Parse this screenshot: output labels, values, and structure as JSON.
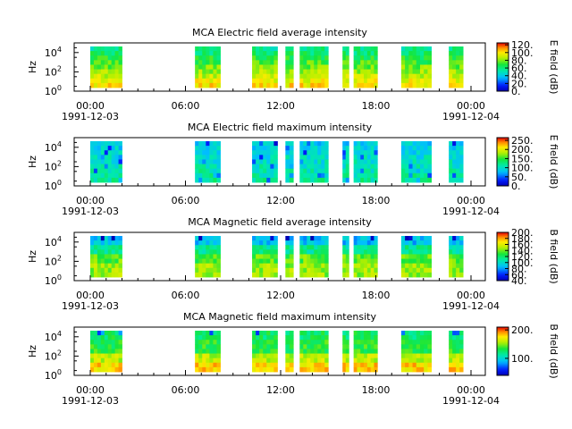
{
  "panels": [
    {
      "title": "MCA  Electric field average intensity",
      "ylabel": "Hz",
      "ytick_exponents": [
        "0",
        "2",
        "4"
      ],
      "colorbar_label": "E field (dB)",
      "colorbar_ticks": [
        "0.",
        "20.",
        "40.",
        "60.",
        "80.",
        "100.",
        "120."
      ],
      "colorbar_range": [
        0,
        125
      ],
      "palette": "avg-e"
    },
    {
      "title": "MCA  Electric field maximum intensity",
      "ylabel": "Hz",
      "ytick_exponents": [
        "0",
        "2",
        "4"
      ],
      "colorbar_label": "E field (dB)",
      "colorbar_ticks": [
        "0.",
        "50.",
        "100.",
        "150.",
        "200.",
        "250."
      ],
      "colorbar_range": [
        0,
        265
      ],
      "palette": "max-e"
    },
    {
      "title": "MCA  Magnetic field average intensity",
      "ylabel": "Hz",
      "ytick_exponents": [
        "0",
        "2",
        "4"
      ],
      "colorbar_label": "B field (dB)",
      "colorbar_ticks": [
        "40.",
        "60.",
        "80.",
        "100.",
        "120.",
        "140.",
        "160.",
        "180.",
        "200."
      ],
      "colorbar_range": [
        40,
        200
      ],
      "palette": "avg-b"
    },
    {
      "title": "MCA  Magnetic field maximum intensity",
      "ylabel": "Hz",
      "ytick_exponents": [
        "0",
        "2",
        "4"
      ],
      "colorbar_label": "B field (dB)",
      "colorbar_ticks": [
        "100.",
        "200."
      ],
      "colorbar_range": [
        40,
        210
      ],
      "palette": "max-b"
    }
  ],
  "x_axis": {
    "tick_labels": [
      "00:00",
      "06:00",
      "12:00",
      "18:00",
      "00:00"
    ],
    "start_date": "1991-12-03",
    "end_date": "1991-12-04"
  },
  "colors": {
    "background": "#ffffff",
    "axes": "#000000"
  },
  "chart_data": [
    {
      "type": "heatmap",
      "title": "MCA  Electric field average intensity",
      "ylabel": "Hz",
      "yscale": "log",
      "ylim": [
        1,
        100000
      ],
      "colorbar_label": "E field (dB)",
      "zlim": [
        0,
        125
      ],
      "data_segments_hours": [
        [
          0,
          2
        ],
        [
          6.6,
          8.2
        ],
        [
          10.2,
          11.8
        ],
        [
          12.3,
          12.8
        ],
        [
          13.2,
          15.0
        ],
        [
          15.9,
          16.3
        ],
        [
          16.6,
          18.1
        ],
        [
          19.6,
          21.5
        ],
        [
          22.6,
          23.5
        ]
      ]
    },
    {
      "type": "heatmap",
      "title": "MCA  Electric field maximum intensity",
      "ylabel": "Hz",
      "yscale": "log",
      "ylim": [
        1,
        100000
      ],
      "colorbar_label": "E field (dB)",
      "zlim": [
        0,
        265
      ],
      "data_segments_hours": [
        [
          0,
          2
        ],
        [
          6.6,
          8.2
        ],
        [
          10.2,
          11.8
        ],
        [
          12.3,
          12.8
        ],
        [
          13.2,
          15.0
        ],
        [
          15.9,
          16.3
        ],
        [
          16.6,
          18.1
        ],
        [
          19.6,
          21.5
        ],
        [
          22.6,
          23.5
        ]
      ]
    },
    {
      "type": "heatmap",
      "title": "MCA  Magnetic field average intensity",
      "ylabel": "Hz",
      "yscale": "log",
      "ylim": [
        1,
        100000
      ],
      "colorbar_label": "B field (dB)",
      "zlim": [
        40,
        200
      ],
      "data_segments_hours": [
        [
          0,
          2
        ],
        [
          6.6,
          8.2
        ],
        [
          10.2,
          11.8
        ],
        [
          12.3,
          12.8
        ],
        [
          13.2,
          15.0
        ],
        [
          15.9,
          16.3
        ],
        [
          16.6,
          18.1
        ],
        [
          19.6,
          21.5
        ],
        [
          22.6,
          23.5
        ]
      ]
    },
    {
      "type": "heatmap",
      "title": "MCA  Magnetic field maximum intensity",
      "ylabel": "Hz",
      "yscale": "log",
      "ylim": [
        1,
        100000
      ],
      "colorbar_label": "B field (dB)",
      "zlim": [
        40,
        210
      ],
      "data_segments_hours": [
        [
          0,
          2
        ],
        [
          6.6,
          8.2
        ],
        [
          10.2,
          11.8
        ],
        [
          12.3,
          12.8
        ],
        [
          13.2,
          15.0
        ],
        [
          15.9,
          16.3
        ],
        [
          16.6,
          18.1
        ],
        [
          19.6,
          21.5
        ],
        [
          22.6,
          23.5
        ]
      ]
    }
  ]
}
